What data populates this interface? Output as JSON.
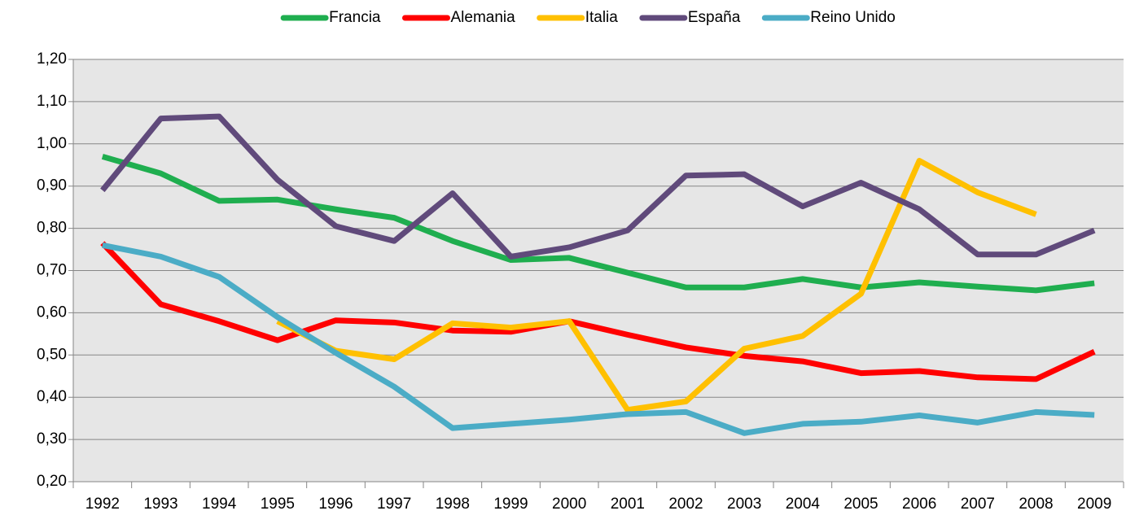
{
  "chart_data": {
    "type": "line",
    "categories": [
      "1992",
      "1993",
      "1994",
      "1995",
      "1996",
      "1997",
      "1998",
      "1999",
      "2000",
      "2001",
      "2002",
      "2003",
      "2004",
      "2005",
      "2006",
      "2007",
      "2008",
      "2009"
    ],
    "series": [
      {
        "name": "Francia",
        "color": "#1fae4f",
        "values": [
          0.97,
          0.93,
          0.865,
          0.868,
          0.845,
          0.825,
          0.77,
          0.725,
          0.73,
          0.695,
          0.66,
          0.66,
          0.68,
          0.66,
          0.672,
          0.662,
          0.653,
          0.67
        ]
      },
      {
        "name": "Alemania",
        "color": "#ff0000",
        "values": [
          0.765,
          0.62,
          0.58,
          0.535,
          0.582,
          0.577,
          0.558,
          0.555,
          0.58,
          0.548,
          0.518,
          0.498,
          0.485,
          0.457,
          0.462,
          0.447,
          0.443,
          0.508
        ]
      },
      {
        "name": "Italia",
        "color": "#ffc000",
        "values": [
          null,
          null,
          null,
          0.58,
          0.51,
          0.49,
          0.575,
          0.565,
          0.58,
          0.37,
          0.39,
          0.515,
          0.545,
          0.645,
          0.96,
          0.885,
          0.833,
          null
        ]
      },
      {
        "name": "España",
        "color": "#604a7b",
        "values": [
          0.89,
          1.06,
          1.065,
          0.915,
          0.805,
          0.77,
          0.883,
          0.733,
          0.755,
          0.795,
          0.925,
          0.928,
          0.852,
          0.908,
          0.845,
          0.738,
          0.738,
          0.795
        ]
      },
      {
        "name": "Reino Unido",
        "color": "#4bacc6",
        "values": [
          0.76,
          0.733,
          0.685,
          0.59,
          0.505,
          0.425,
          0.327,
          0.337,
          0.347,
          0.36,
          0.365,
          0.315,
          0.337,
          0.342,
          0.357,
          0.34,
          0.365,
          0.358
        ]
      }
    ],
    "ylim": [
      0.2,
      1.2
    ],
    "yticks": [
      {
        "value": 0.2,
        "label": "0,20"
      },
      {
        "value": 0.3,
        "label": "0,30"
      },
      {
        "value": 0.4,
        "label": "0,40"
      },
      {
        "value": 0.5,
        "label": "0,50"
      },
      {
        "value": 0.6,
        "label": "0,60"
      },
      {
        "value": 0.7,
        "label": "0,70"
      },
      {
        "value": 0.8,
        "label": "0,80"
      },
      {
        "value": 0.9,
        "label": "0,90"
      },
      {
        "value": 1.0,
        "label": "1,00"
      },
      {
        "value": 1.1,
        "label": "1,10"
      },
      {
        "value": 1.2,
        "label": "1,20"
      }
    ],
    "grid": true,
    "legend": "top"
  }
}
